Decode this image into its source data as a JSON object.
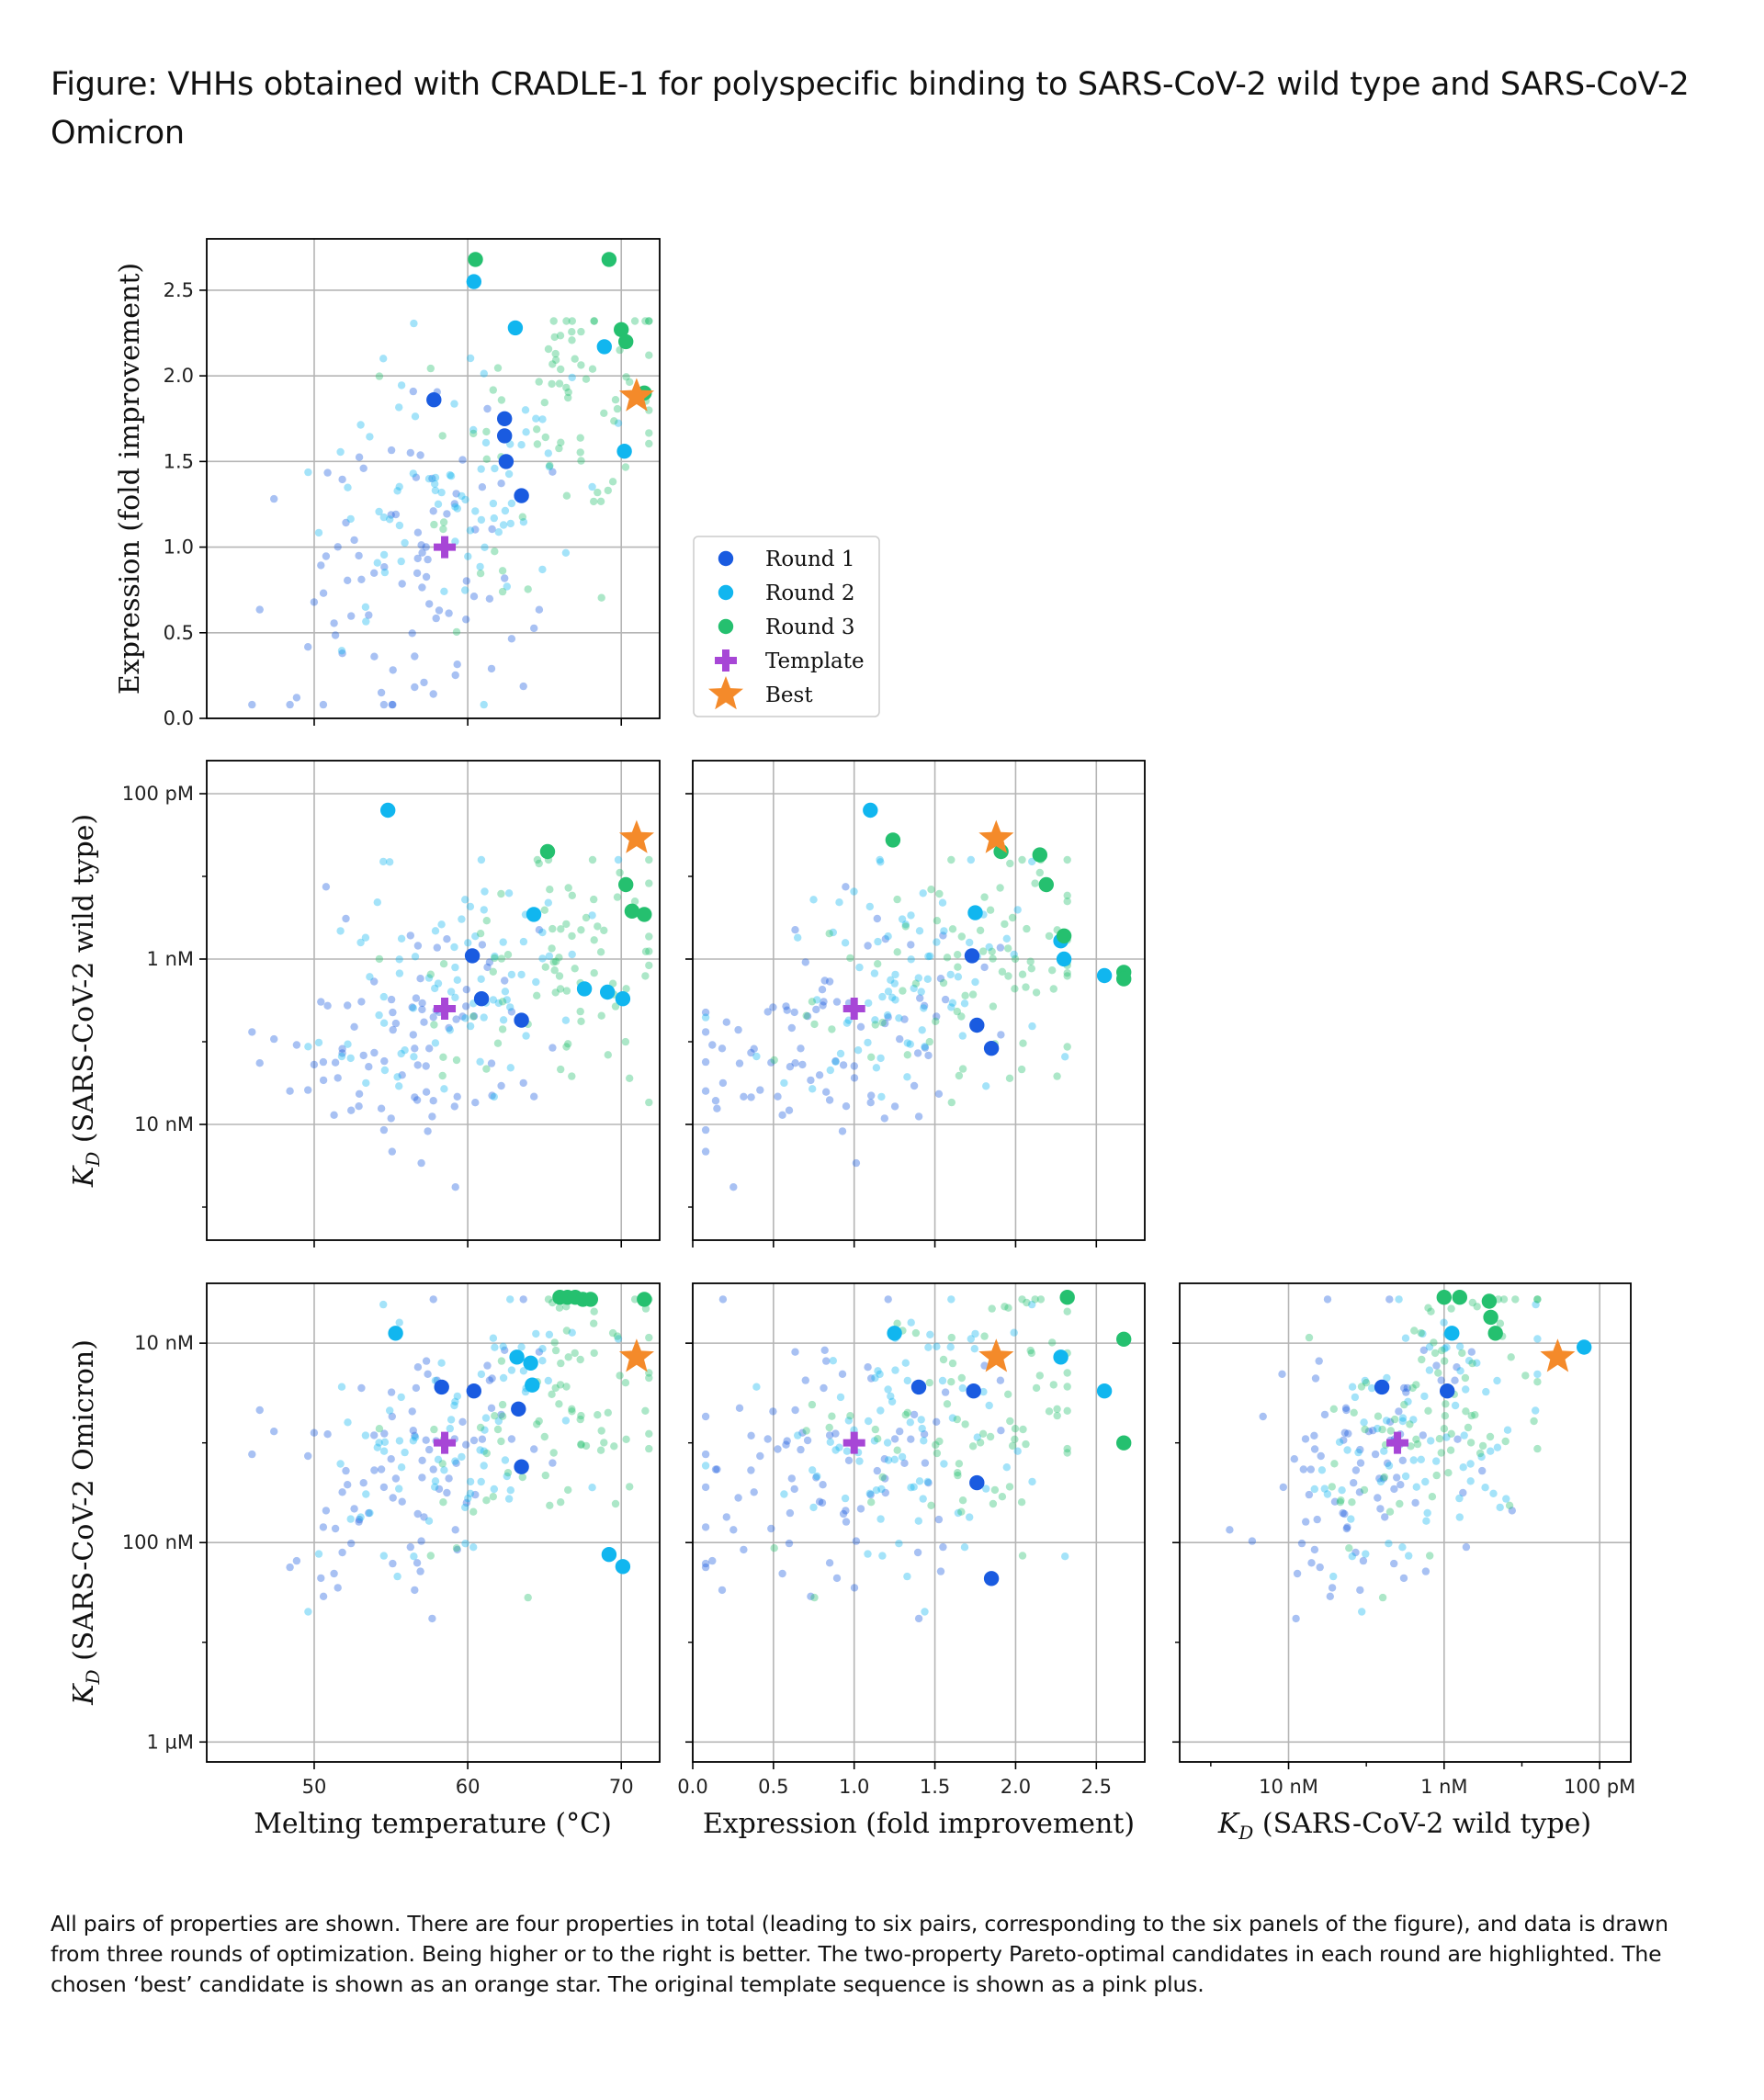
{
  "title": "Figure: VHHs obtained with CRADLE-1 for polyspecific binding to SARS-CoV-2 wild type and SARS-CoV-2 Omicron",
  "caption": "All pairs of properties are shown. There are four properties in total (leading to six pairs, corresponding to the six panels of the figure), and data is drawn from three rounds of optimization. Being higher or to the right is better. The two-property Pareto-optimal candidates in each round are highlighted. The chosen ‘best’ candidate is shown as an orange star. The original template sequence is shown as a pink plus.",
  "colors": {
    "round1": "#1a5be0",
    "round2": "#11b6ef",
    "round3": "#25c06f",
    "template": "#a746d6",
    "best": "#f48a2a",
    "grid": "#b5b5b5",
    "axis": "#000000"
  },
  "chart_data": {
    "type": "scatter",
    "figure_kind": "pair-plot (lower triangle)",
    "variables": {
      "tm": {
        "label": "Melting temperature (°C)",
        "scale": "linear",
        "range": [
          43,
          72.5
        ],
        "ticks": [
          50,
          60,
          70
        ],
        "tick_labels": [
          "50",
          "60",
          "70"
        ]
      },
      "expr": {
        "label": "Expression (fold improvement)",
        "scale": "linear",
        "range": [
          0,
          2.8
        ],
        "ticks": [
          0.0,
          0.5,
          1.0,
          1.5,
          2.0,
          2.5
        ],
        "tick_labels": [
          "0.0",
          "0.5",
          "1.0",
          "1.5",
          "2.0",
          "2.5"
        ]
      },
      "kd_wt": {
        "label": "K_D (SARS-CoV-2 wild type)",
        "axis_title_main": "K",
        "axis_title_sub": "D",
        "axis_title_rest": " (SARS-CoV-2 wild type)",
        "scale": "log10 (molar, inverted: stronger binding up/right)",
        "range_neglog": [
          7.3,
          10.2
        ],
        "ticks": [
          8,
          9,
          10
        ],
        "tick_labels": [
          "10 nM",
          "1 nM",
          "100 pM"
        ],
        "minor_ticks": [
          7.5,
          8.5,
          9.5
        ]
      },
      "kd_om": {
        "label": "K_D (SARS-CoV-2 Omicron)",
        "axis_title_main": "K",
        "axis_title_sub": "D",
        "axis_title_rest": " (SARS-CoV-2 Omicron)",
        "scale": "log10 (molar, inverted: stronger binding up/right)",
        "range_neglog": [
          5.9,
          8.3
        ],
        "ticks": [
          6,
          7,
          8
        ],
        "tick_labels": [
          "1 µM",
          "100 nM",
          "10 nM"
        ],
        "minor_ticks": [
          6.5,
          7.5
        ]
      }
    },
    "panels": [
      {
        "name": "tm-vs-expression",
        "x": "tm",
        "y": "expr"
      },
      {
        "name": "tm-vs-kd-wt",
        "x": "tm",
        "y": "kd_wt"
      },
      {
        "name": "expression-vs-kd-wt",
        "x": "expr",
        "y": "kd_wt"
      },
      {
        "name": "tm-vs-kd-omicron",
        "x": "tm",
        "y": "kd_om"
      },
      {
        "name": "expression-vs-kd-omicron",
        "x": "expr",
        "y": "kd_om"
      },
      {
        "name": "kd-wt-vs-kd-omicron",
        "x": "kd_wt",
        "y": "kd_om"
      }
    ],
    "legend": {
      "placement": "right of top-left panel",
      "entries": [
        {
          "label": "Round 1",
          "marker": "circle",
          "color_key": "round1"
        },
        {
          "label": "Round 2",
          "marker": "circle",
          "color_key": "round2"
        },
        {
          "label": "Round 3",
          "marker": "circle",
          "color_key": "round3"
        },
        {
          "label": "Template",
          "marker": "plus",
          "color_key": "template"
        },
        {
          "label": "Best",
          "marker": "star",
          "color_key": "best"
        }
      ]
    },
    "template": {
      "tm": 58.5,
      "expr": 1.0,
      "kd_wt": 8.7,
      "kd_om": 7.5
    },
    "best": {
      "tm": 71.0,
      "expr": 1.88,
      "kd_wt": 9.73,
      "kd_om": 7.93
    },
    "background_counts": {
      "round1": 85,
      "round2": 80,
      "round3": 80
    },
    "highlighted": {
      "tm_expr": [
        {
          "r": 1,
          "x": 57.8,
          "y": 1.86
        },
        {
          "r": 1,
          "x": 62.4,
          "y": 1.75
        },
        {
          "r": 1,
          "x": 62.4,
          "y": 1.65
        },
        {
          "r": 1,
          "x": 62.5,
          "y": 1.5
        },
        {
          "r": 1,
          "x": 63.5,
          "y": 1.3
        },
        {
          "r": 2,
          "x": 60.4,
          "y": 2.55
        },
        {
          "r": 2,
          "x": 63.1,
          "y": 2.28
        },
        {
          "r": 2,
          "x": 68.9,
          "y": 2.17
        },
        {
          "r": 2,
          "x": 70.2,
          "y": 1.56
        },
        {
          "r": 3,
          "x": 60.5,
          "y": 2.68
        },
        {
          "r": 3,
          "x": 69.2,
          "y": 2.68
        },
        {
          "r": 3,
          "x": 70.0,
          "y": 2.27
        },
        {
          "r": 3,
          "x": 70.3,
          "y": 2.2
        },
        {
          "r": 3,
          "x": 71.5,
          "y": 1.9
        }
      ],
      "tm_kdwt": [
        {
          "r": 1,
          "x": 60.3,
          "y": 9.02
        },
        {
          "r": 1,
          "x": 60.9,
          "y": 8.76
        },
        {
          "r": 1,
          "x": 63.5,
          "y": 8.63
        },
        {
          "r": 2,
          "x": 54.8,
          "y": 9.9
        },
        {
          "r": 2,
          "x": 64.3,
          "y": 9.27
        },
        {
          "r": 2,
          "x": 67.6,
          "y": 8.82
        },
        {
          "r": 2,
          "x": 69.1,
          "y": 8.8
        },
        {
          "r": 2,
          "x": 70.1,
          "y": 8.76
        },
        {
          "r": 3,
          "x": 65.2,
          "y": 9.65
        },
        {
          "r": 3,
          "x": 70.3,
          "y": 9.45
        },
        {
          "r": 3,
          "x": 70.7,
          "y": 9.29
        },
        {
          "r": 3,
          "x": 71.5,
          "y": 9.27
        }
      ],
      "expr_kdwt": [
        {
          "r": 1,
          "x": 1.73,
          "y": 9.02
        },
        {
          "r": 1,
          "x": 1.76,
          "y": 8.6
        },
        {
          "r": 1,
          "x": 1.85,
          "y": 8.46
        },
        {
          "r": 2,
          "x": 1.1,
          "y": 9.9
        },
        {
          "r": 2,
          "x": 1.75,
          "y": 9.28
        },
        {
          "r": 2,
          "x": 2.28,
          "y": 9.11
        },
        {
          "r": 2,
          "x": 2.3,
          "y": 9.0
        },
        {
          "r": 2,
          "x": 2.55,
          "y": 8.9
        },
        {
          "r": 3,
          "x": 1.24,
          "y": 9.72
        },
        {
          "r": 3,
          "x": 1.91,
          "y": 9.65
        },
        {
          "r": 3,
          "x": 2.15,
          "y": 9.63
        },
        {
          "r": 3,
          "x": 2.19,
          "y": 9.45
        },
        {
          "r": 3,
          "x": 2.3,
          "y": 9.14
        },
        {
          "r": 3,
          "x": 2.67,
          "y": 8.92
        },
        {
          "r": 3,
          "x": 2.67,
          "y": 8.88
        }
      ],
      "tm_kdom": [
        {
          "r": 1,
          "x": 58.3,
          "y": 7.78
        },
        {
          "r": 1,
          "x": 60.4,
          "y": 7.76
        },
        {
          "r": 1,
          "x": 63.3,
          "y": 7.67
        },
        {
          "r": 1,
          "x": 63.5,
          "y": 7.38
        },
        {
          "r": 2,
          "x": 55.3,
          "y": 8.05
        },
        {
          "r": 2,
          "x": 63.2,
          "y": 7.93
        },
        {
          "r": 2,
          "x": 64.1,
          "y": 7.9
        },
        {
          "r": 2,
          "x": 64.2,
          "y": 7.79
        },
        {
          "r": 2,
          "x": 69.2,
          "y": 6.94
        },
        {
          "r": 2,
          "x": 70.1,
          "y": 6.88
        },
        {
          "r": 3,
          "x": 66.0,
          "y": 8.23
        },
        {
          "r": 3,
          "x": 66.5,
          "y": 8.23
        },
        {
          "r": 3,
          "x": 67.0,
          "y": 8.23
        },
        {
          "r": 3,
          "x": 67.5,
          "y": 8.22
        },
        {
          "r": 3,
          "x": 68.0,
          "y": 8.22
        },
        {
          "r": 3,
          "x": 71.5,
          "y": 8.22
        }
      ],
      "expr_kdom": [
        {
          "r": 1,
          "x": 1.4,
          "y": 7.78
        },
        {
          "r": 1,
          "x": 1.74,
          "y": 7.76
        },
        {
          "r": 1,
          "x": 1.76,
          "y": 7.3
        },
        {
          "r": 1,
          "x": 1.85,
          "y": 6.82
        },
        {
          "r": 2,
          "x": 1.25,
          "y": 8.05
        },
        {
          "r": 2,
          "x": 2.28,
          "y": 7.93
        },
        {
          "r": 2,
          "x": 2.55,
          "y": 7.76
        },
        {
          "r": 3,
          "x": 2.32,
          "y": 8.23
        },
        {
          "r": 3,
          "x": 2.67,
          "y": 8.02
        },
        {
          "r": 3,
          "x": 2.67,
          "y": 7.5
        }
      ],
      "kdwt_kdom": [
        {
          "r": 1,
          "x": 8.6,
          "y": 7.78
        },
        {
          "r": 1,
          "x": 9.02,
          "y": 7.76
        },
        {
          "r": 2,
          "x": 9.05,
          "y": 8.05
        },
        {
          "r": 2,
          "x": 9.9,
          "y": 7.98
        },
        {
          "r": 3,
          "x": 9.0,
          "y": 8.23
        },
        {
          "r": 3,
          "x": 9.1,
          "y": 8.23
        },
        {
          "r": 3,
          "x": 9.29,
          "y": 8.21
        },
        {
          "r": 3,
          "x": 9.3,
          "y": 8.13
        },
        {
          "r": 3,
          "x": 9.33,
          "y": 8.05
        }
      ]
    }
  }
}
